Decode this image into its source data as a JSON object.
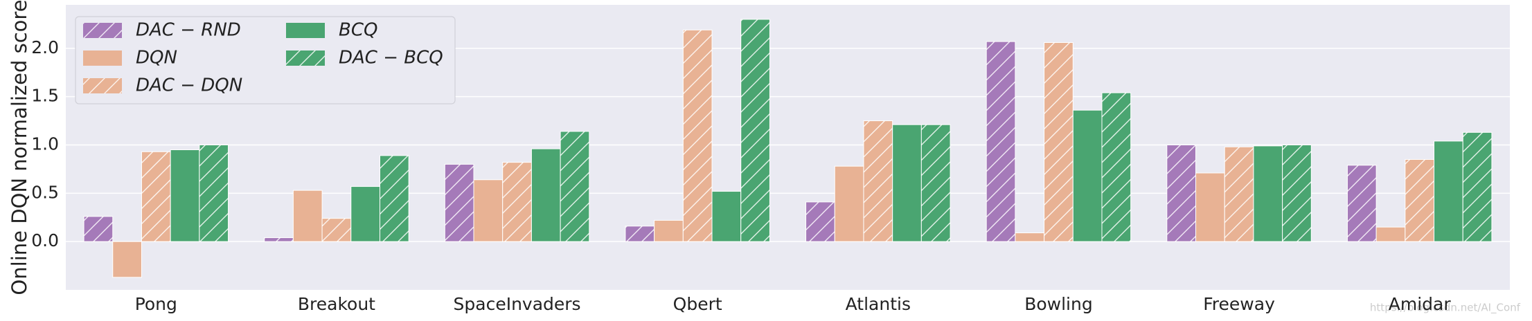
{
  "chart_data": {
    "type": "bar",
    "y_label": "Online DQN normalized score",
    "categories": [
      "Pong",
      "Breakout",
      "SpaceInvaders",
      "Qbert",
      "Atlantis",
      "Bowling",
      "Freeway",
      "Amidar"
    ],
    "series": [
      {
        "name": "DAC − RND",
        "color": "#a57ab9",
        "hatch": true,
        "values": [
          0.26,
          0.04,
          0.8,
          0.16,
          0.41,
          2.07,
          1.0,
          0.79
        ]
      },
      {
        "name": "DQN",
        "color": "#e8b294",
        "hatch": false,
        "values": [
          -0.37,
          0.53,
          0.64,
          0.22,
          0.78,
          0.09,
          0.71,
          0.15
        ]
      },
      {
        "name": "DAC − DQN",
        "color": "#e8b294",
        "hatch": true,
        "values": [
          0.93,
          0.24,
          0.82,
          2.19,
          1.25,
          2.06,
          0.98,
          0.85
        ]
      },
      {
        "name": "BCQ",
        "color": "#4aa571",
        "hatch": false,
        "values": [
          0.95,
          0.57,
          0.96,
          0.52,
          1.21,
          1.36,
          0.99,
          1.04
        ]
      },
      {
        "name": "DAC − BCQ",
        "color": "#4aa571",
        "hatch": true,
        "values": [
          1.0,
          0.89,
          1.14,
          2.3,
          1.21,
          1.54,
          1.0,
          1.13
        ]
      }
    ],
    "ylim": [
      -0.5,
      2.45
    ],
    "yticks": [
      {
        "value": 0,
        "label": "0.0"
      },
      {
        "value": 0.5,
        "label": "0.5"
      },
      {
        "value": 1,
        "label": "1.0"
      },
      {
        "value": 1.5,
        "label": "1.5"
      },
      {
        "value": 2,
        "label": "2.0"
      }
    ],
    "grid": true,
    "legend": "upper left",
    "watermark": "https://blog.csdn.net/AI_Conf"
  }
}
